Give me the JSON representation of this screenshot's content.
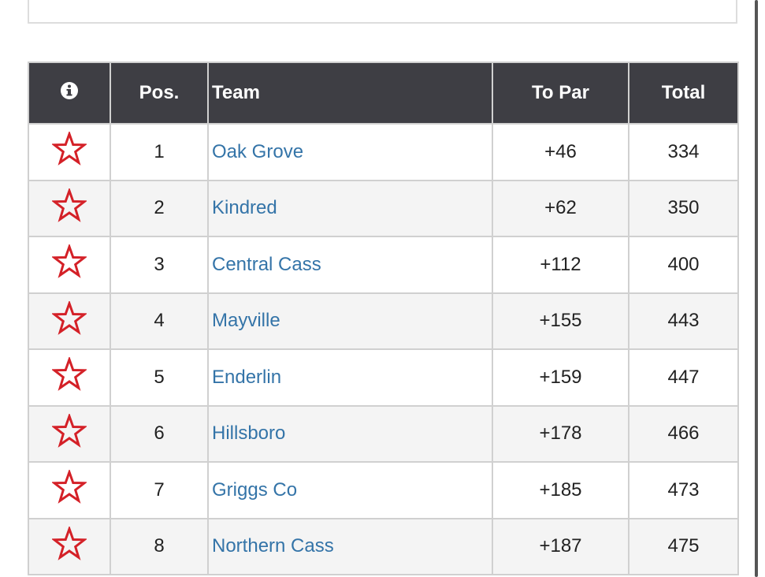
{
  "table": {
    "columns": [
      "Pos.",
      "Team",
      "To Par",
      "Total"
    ],
    "rows": [
      [
        1,
        "Oak Grove",
        "+46",
        334
      ],
      [
        2,
        "Kindred",
        "+62",
        350
      ],
      [
        3,
        "Central Cass",
        "+112",
        400
      ],
      [
        4,
        "Mayville",
        "+155",
        443
      ],
      [
        5,
        "Enderlin",
        "+159",
        447
      ],
      [
        6,
        "Hillsboro",
        "+178",
        466
      ],
      [
        7,
        "Griggs Co",
        "+185",
        473
      ],
      [
        8,
        "Northern Cass",
        "+187",
        475
      ]
    ]
  }
}
